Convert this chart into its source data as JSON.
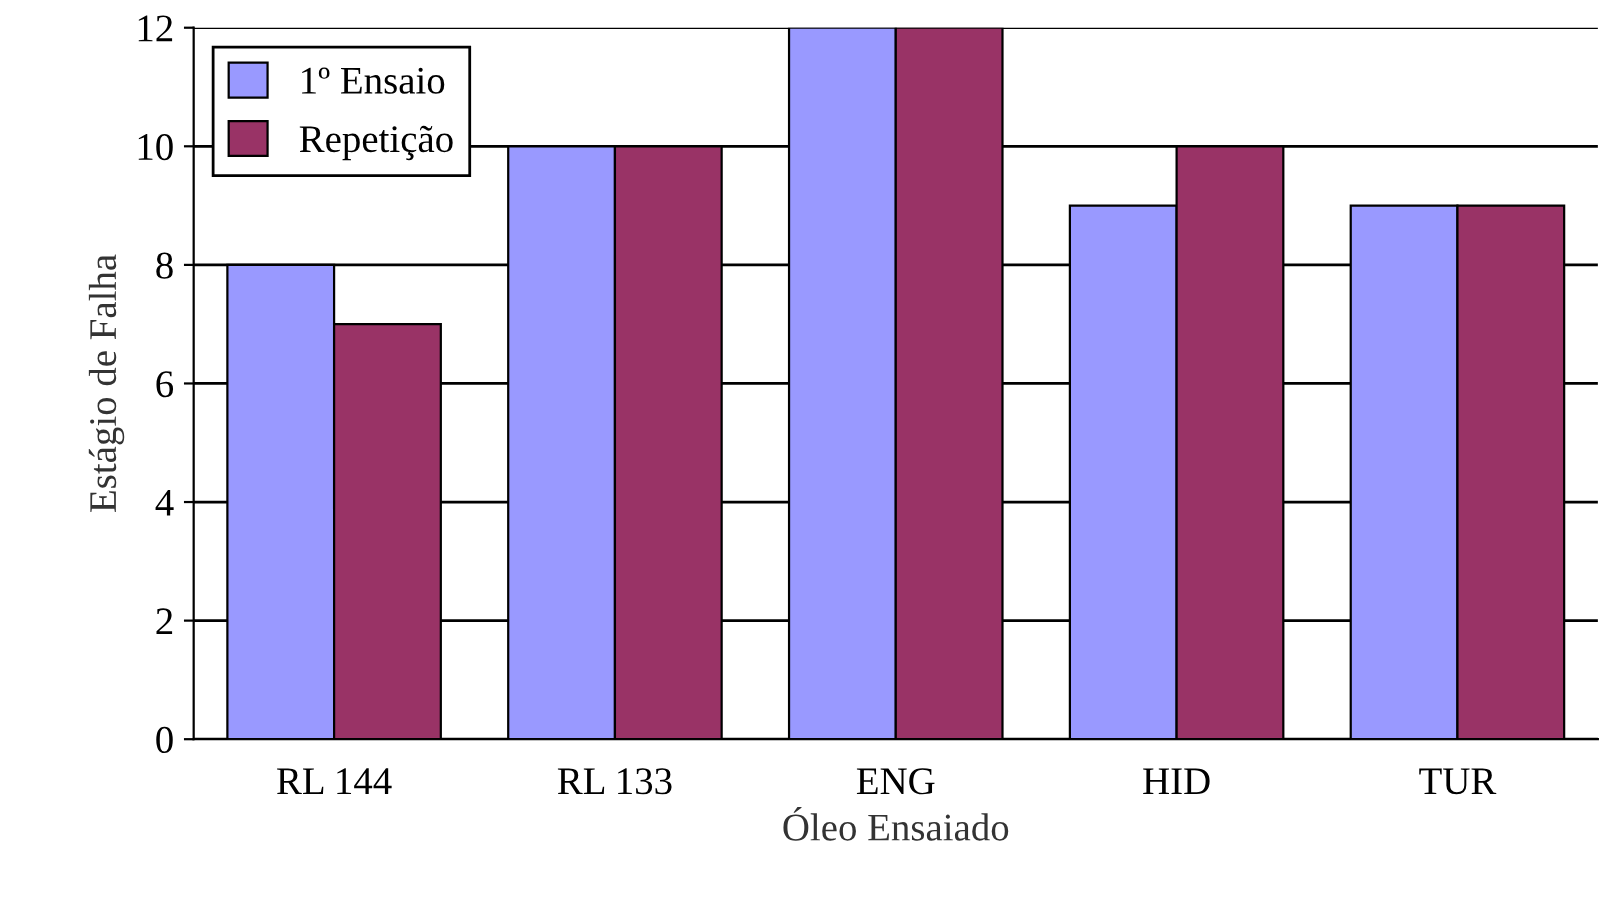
{
  "chart_data": {
    "type": "bar",
    "xlabel": "Óleo Ensaiado",
    "ylabel": "Estágio de Falha",
    "categories": [
      "RL 144",
      "RL 133",
      "ENG",
      "HID",
      "TUR"
    ],
    "series": [
      {
        "name": "1º Ensaio",
        "color": "#9999ff",
        "values": [
          8,
          10,
          12,
          9,
          9
        ]
      },
      {
        "name": "Repetição",
        "color": "#993366",
        "values": [
          7,
          10,
          12,
          10,
          9
        ]
      }
    ],
    "ylim": [
      0,
      12
    ],
    "yticks": [
      0,
      2,
      4,
      6,
      8,
      10,
      12
    ],
    "grid": "y",
    "legend": "top left"
  }
}
